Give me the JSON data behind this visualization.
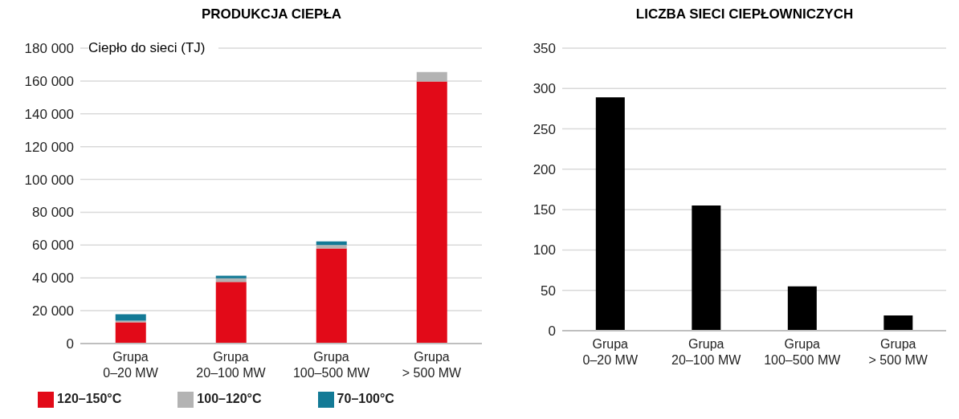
{
  "chart_data": [
    {
      "type": "bar",
      "title": "PRODUKCJA CIEPŁA",
      "ylabel": "Ciepło do sieci (TJ)",
      "categories": [
        "Grupa 0–20 MW",
        "Grupa 20–100 MW",
        "Grupa 100–500 MW",
        "Grupa > 500 MW"
      ],
      "stacked": true,
      "series": [
        {
          "name": "120–150°C",
          "color": "#e20a18",
          "values": [
            13000,
            37500,
            58000,
            159700
          ]
        },
        {
          "name": "100–120°C",
          "color": "#b3b3b3",
          "values": [
            1000,
            2300,
            2000,
            5800
          ]
        },
        {
          "name": "70–100°C",
          "color": "#137a96",
          "values": [
            3800,
            1500,
            2300,
            0
          ]
        }
      ],
      "ylim": [
        0,
        180000
      ],
      "yticks": [
        0,
        {
          "value": 20000,
          "label": "20 000"
        },
        {
          "value": 40000,
          "label": "40 000"
        },
        {
          "value": 60000,
          "label": "60 000"
        },
        {
          "value": 80000,
          "label": "80 000"
        },
        {
          "value": 100000,
          "label": "100 000"
        },
        {
          "value": 120000,
          "label": "120 000"
        },
        {
          "value": 140000,
          "label": "140 000"
        },
        {
          "value": 160000,
          "label": "160 000"
        },
        {
          "value": 180000,
          "label": "180 000"
        }
      ],
      "grid": "y",
      "legend": "bottom"
    },
    {
      "type": "bar",
      "title": "LICZBA SIECI CIEPŁOWNICZYCH",
      "categories": [
        "Grupa 0–20 MW",
        "Grupa 20–100 MW",
        "Grupa 100–500 MW",
        "Grupa > 500 MW"
      ],
      "series": [
        {
          "color": "#000000",
          "values": [
            289,
            155,
            55,
            19
          ]
        }
      ],
      "ylim": [
        0,
        350
      ],
      "yticks": [
        0,
        50,
        100,
        150,
        200,
        250,
        300,
        350
      ],
      "grid": "y"
    }
  ]
}
